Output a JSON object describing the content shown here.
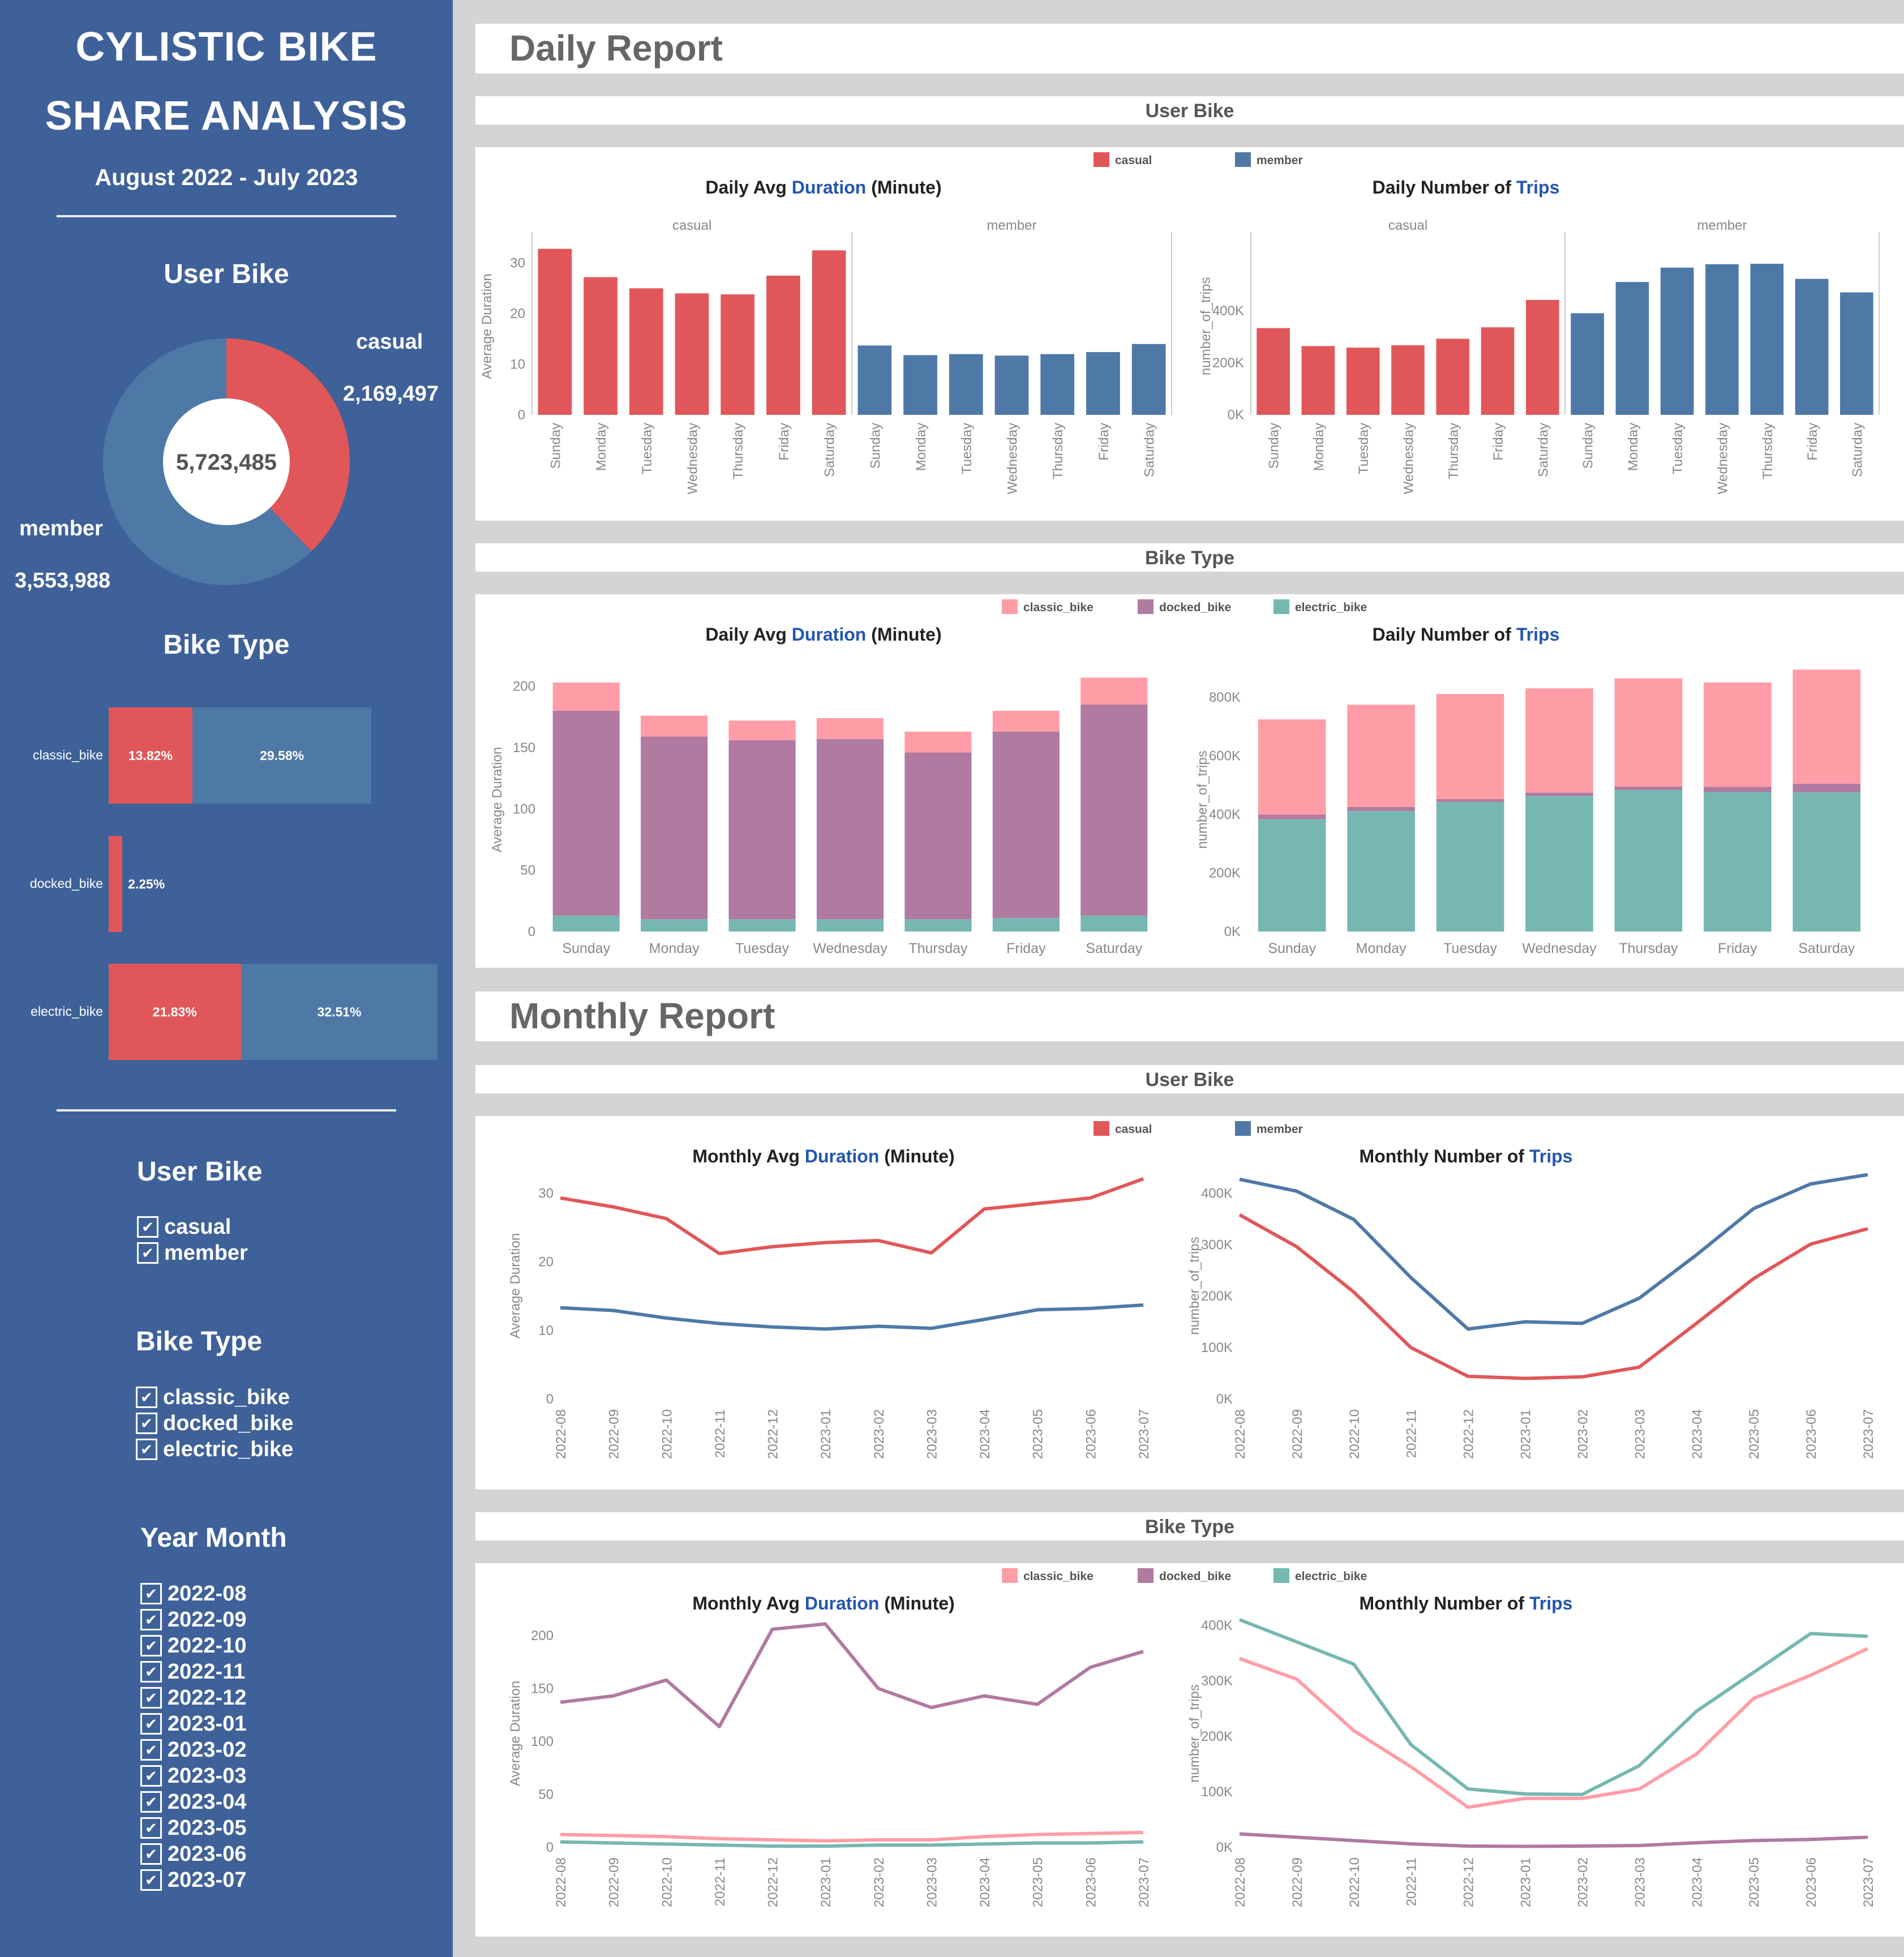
{
  "colors": {
    "casual": "#e15759",
    "member": "#4e79a7",
    "classic_bike": "#ff9da7",
    "docked_bike": "#b07aa1",
    "electric_bike": "#76b7b2",
    "sidebar": "#3f6199",
    "accent": "#2456b0"
  },
  "sidebar": {
    "title_line1": "CYLISTIC BIKE",
    "title_line2": "SHARE ANALYSIS",
    "period": "August 2022 - July 2023",
    "user_bike_heading": "User Bike",
    "donut": {
      "total": "5,723,485",
      "casual_label": "casual",
      "casual_value": "2,169,497",
      "casual_count": 2169497,
      "member_label": "member",
      "member_value": "3,553,988",
      "member_count": 3553988
    },
    "bike_type_heading": "Bike Type",
    "bike_type_bars": [
      {
        "label": "classic_bike",
        "casual_pct": 13.82,
        "member_pct": 29.58,
        "casual_text": "13.82%",
        "member_text": "29.58%"
      },
      {
        "label": "docked_bike",
        "casual_pct": 2.25,
        "member_pct": 0,
        "casual_text": "2.25%",
        "member_text": ""
      },
      {
        "label": "electric_bike",
        "casual_pct": 21.83,
        "member_pct": 32.51,
        "casual_text": "21.83%",
        "member_text": "32.51%"
      }
    ],
    "filters": {
      "user_bike": {
        "heading": "User Bike",
        "items": [
          "casual",
          "member"
        ]
      },
      "bike_type": {
        "heading": "Bike Type",
        "items": [
          "classic_bike",
          "docked_bike",
          "electric_bike"
        ]
      },
      "year_month": {
        "heading": "Year Month",
        "items": [
          "2022-08",
          "2022-09",
          "2022-10",
          "2022-11",
          "2022-12",
          "2023-01",
          "2023-02",
          "2023-03",
          "2023-04",
          "2023-05",
          "2023-06",
          "2023-07"
        ]
      }
    }
  },
  "daily_report": {
    "title": "Daily Report",
    "user_bike_section": "User Bike",
    "bike_type_section": "Bike Type"
  },
  "monthly_report": {
    "title": "Monthly Report",
    "user_bike_section": "User Bike",
    "bike_type_section": "Bike Type"
  },
  "legends": {
    "user": [
      "casual",
      "member"
    ],
    "bike": [
      "classic_bike",
      "docked_bike",
      "electric_bike"
    ]
  },
  "chart_data": [
    {
      "id": "daily_user_duration",
      "type": "bar",
      "title_parts": [
        "Daily Avg ",
        "Duration",
        " (Minute)"
      ],
      "ylabel": "Average Duration",
      "ylim": [
        0,
        35
      ],
      "yticks": [
        0,
        10,
        20,
        30
      ],
      "panels": [
        "casual",
        "member"
      ],
      "categories": [
        "Sunday",
        "Monday",
        "Tuesday",
        "Wednesday",
        "Thursday",
        "Friday",
        "Saturday"
      ],
      "series": [
        {
          "name": "casual",
          "values": [
            32.8,
            27.2,
            25.0,
            24.0,
            23.8,
            27.5,
            32.5
          ]
        },
        {
          "name": "member",
          "values": [
            13.7,
            11.8,
            12.0,
            11.7,
            12.0,
            12.4,
            14.0
          ]
        }
      ]
    },
    {
      "id": "daily_user_trips",
      "type": "bar",
      "title_parts": [
        "Daily Number of ",
        "Trips",
        ""
      ],
      "ylabel": "number_of_trips",
      "ylim": [
        0,
        680000
      ],
      "yticks": [
        0,
        200000,
        400000
      ],
      "ytick_labels": [
        "0K",
        "200K",
        "400K"
      ],
      "panels": [
        "casual",
        "member"
      ],
      "categories": [
        "Sunday",
        "Monday",
        "Tuesday",
        "Wednesday",
        "Thursday",
        "Friday",
        "Saturday"
      ],
      "series": [
        {
          "name": "casual",
          "values": [
            333000,
            264000,
            258000,
            267000,
            292000,
            336000,
            441000
          ]
        },
        {
          "name": "member",
          "values": [
            390000,
            510000,
            565000,
            578000,
            580000,
            522000,
            470000
          ]
        }
      ]
    },
    {
      "id": "daily_bike_duration",
      "type": "bar",
      "title_parts": [
        "Daily Avg ",
        "Duration",
        " (Minute)"
      ],
      "ylabel": "Average Duration",
      "ylim": [
        0,
        215
      ],
      "yticks": [
        0,
        50,
        100,
        150,
        200
      ],
      "categories": [
        "Sunday",
        "Monday",
        "Tuesday",
        "Wednesday",
        "Thursday",
        "Friday",
        "Saturday"
      ],
      "series": [
        {
          "name": "electric_bike",
          "values": [
            13,
            10,
            10,
            10,
            10,
            11,
            13
          ]
        },
        {
          "name": "docked_bike",
          "values": [
            167,
            149,
            146,
            147,
            136,
            152,
            172
          ]
        },
        {
          "name": "classic_bike",
          "values": [
            23,
            17,
            16,
            17,
            17,
            17,
            22
          ]
        }
      ]
    },
    {
      "id": "daily_bike_trips",
      "type": "bar",
      "title_parts": [
        "Daily Number of ",
        "Trips",
        ""
      ],
      "ylabel": "number_of_trips",
      "ylim": [
        0,
        900000
      ],
      "yticks": [
        0,
        200000,
        400000,
        600000,
        800000
      ],
      "ytick_labels": [
        "0K",
        "200K",
        "400K",
        "600K",
        "800K"
      ],
      "categories": [
        "Sunday",
        "Monday",
        "Tuesday",
        "Wednesday",
        "Thursday",
        "Friday",
        "Saturday"
      ],
      "series": [
        {
          "name": "electric_bike",
          "values": [
            383000,
            411000,
            442000,
            463000,
            483000,
            476000,
            475000
          ]
        },
        {
          "name": "docked_bike",
          "values": [
            16000,
            14000,
            10000,
            11000,
            12000,
            18000,
            29000
          ]
        },
        {
          "name": "classic_bike",
          "values": [
            325000,
            349000,
            359000,
            356000,
            369000,
            356000,
            390000
          ]
        }
      ]
    },
    {
      "id": "monthly_user_duration",
      "type": "line",
      "title_parts": [
        "Monthly Avg ",
        "Duration",
        " (Minute)"
      ],
      "ylabel": "Average Duration",
      "ylim": [
        0,
        33
      ],
      "yticks": [
        0,
        10,
        20,
        30
      ],
      "x": [
        "2022-08",
        "2022-09",
        "2022-10",
        "2022-11",
        "2022-12",
        "2023-01",
        "2023-02",
        "2023-03",
        "2023-04",
        "2023-05",
        "2023-06",
        "2023-07"
      ],
      "series": [
        {
          "name": "casual",
          "values": [
            29.3,
            28.0,
            26.3,
            21.2,
            22.2,
            22.8,
            23.1,
            21.3,
            27.7,
            28.5,
            29.3,
            32.1
          ]
        },
        {
          "name": "member",
          "values": [
            13.3,
            12.9,
            11.8,
            11.0,
            10.5,
            10.2,
            10.6,
            10.3,
            11.6,
            13.0,
            13.2,
            13.7
          ]
        }
      ]
    },
    {
      "id": "monthly_user_trips",
      "type": "line",
      "title_parts": [
        "Monthly Number of ",
        "Trips",
        ""
      ],
      "ylabel": "number_of_trips",
      "ylim": [
        0,
        440000
      ],
      "yticks": [
        0,
        100000,
        200000,
        300000,
        400000
      ],
      "ytick_labels": [
        "0K",
        "100K",
        "200K",
        "300K",
        "400K"
      ],
      "x": [
        "2022-08",
        "2022-09",
        "2022-10",
        "2022-11",
        "2022-12",
        "2023-01",
        "2023-02",
        "2023-03",
        "2023-04",
        "2023-05",
        "2023-06",
        "2023-07"
      ],
      "series": [
        {
          "name": "casual",
          "values": [
            358000,
            296000,
            208000,
            100000,
            44000,
            40000,
            43000,
            62000,
            147000,
            234000,
            301000,
            331000
          ]
        },
        {
          "name": "member",
          "values": [
            427000,
            404000,
            349000,
            236000,
            136000,
            150000,
            147000,
            196000,
            280000,
            370000,
            418000,
            436000
          ]
        }
      ]
    },
    {
      "id": "monthly_bike_duration",
      "type": "line",
      "title_parts": [
        "Monthly Avg ",
        "Duration",
        " (Minute)"
      ],
      "ylabel": "Average Duration",
      "ylim": [
        0,
        215
      ],
      "yticks": [
        0,
        50,
        100,
        150,
        200
      ],
      "x": [
        "2022-08",
        "2022-09",
        "2022-10",
        "2022-11",
        "2022-12",
        "2023-01",
        "2023-02",
        "2023-03",
        "2023-04",
        "2023-05",
        "2023-06",
        "2023-07"
      ],
      "series": [
        {
          "name": "docked_bike",
          "values": [
            137,
            143,
            158,
            114,
            206,
            211,
            150,
            132,
            143,
            135,
            170,
            185
          ]
        },
        {
          "name": "classic_bike",
          "values": [
            12,
            11,
            10,
            8,
            7,
            6,
            7,
            7,
            10,
            12,
            13,
            14
          ]
        },
        {
          "name": "electric_bike",
          "values": [
            5,
            4,
            3,
            2,
            1,
            1,
            2,
            2,
            3,
            4,
            4,
            5
          ]
        }
      ]
    },
    {
      "id": "monthly_bike_trips",
      "type": "line",
      "title_parts": [
        "Monthly Number of ",
        "Trips",
        ""
      ],
      "ylabel": "number_of_trips",
      "ylim": [
        0,
        410000
      ],
      "yticks": [
        0,
        100000,
        200000,
        300000,
        400000
      ],
      "ytick_labels": [
        "0K",
        "100K",
        "200K",
        "300K",
        "400K"
      ],
      "x": [
        "2022-08",
        "2022-09",
        "2022-10",
        "2022-11",
        "2022-12",
        "2023-01",
        "2023-02",
        "2023-03",
        "2023-04",
        "2023-05",
        "2023-06",
        "2023-07"
      ],
      "series": [
        {
          "name": "classic_bike",
          "values": [
            340000,
            303000,
            210000,
            145000,
            72000,
            88000,
            88000,
            105000,
            168000,
            268000,
            310000,
            358000
          ]
        },
        {
          "name": "docked_bike",
          "values": [
            24000,
            18000,
            12000,
            6000,
            2000,
            1500,
            2000,
            3000,
            8000,
            12000,
            14000,
            18000
          ]
        },
        {
          "name": "electric_bike",
          "values": [
            410000,
            370000,
            330000,
            185000,
            105000,
            96000,
            95000,
            147000,
            245000,
            315000,
            385000,
            380000
          ]
        }
      ]
    }
  ]
}
